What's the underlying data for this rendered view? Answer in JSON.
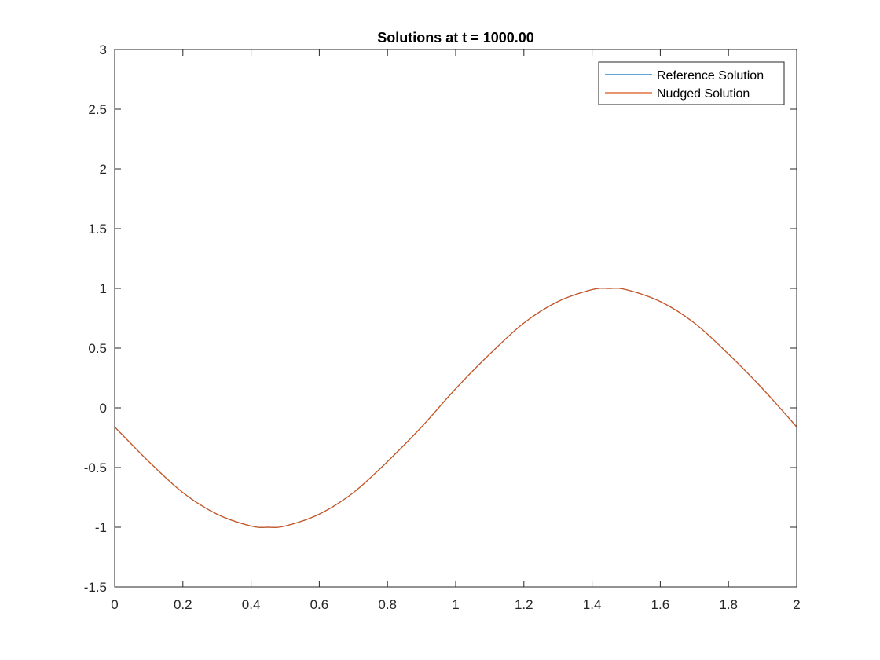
{
  "chart_data": {
    "type": "line",
    "title": "Solutions at t = 1000.00",
    "xlabel": "",
    "ylabel": "",
    "xlim": [
      0,
      2
    ],
    "ylim": [
      -1.5,
      3
    ],
    "xticks": [
      0,
      0.2,
      0.4,
      0.6,
      0.8,
      1,
      1.2,
      1.4,
      1.6,
      1.8,
      2
    ],
    "xtick_labels": [
      "0",
      "0.2",
      "0.4",
      "0.6",
      "0.8",
      "1",
      "1.2",
      "1.4",
      "1.6",
      "1.8",
      "2"
    ],
    "yticks": [
      -1.5,
      -1,
      -0.5,
      0,
      0.5,
      1,
      1.5,
      2,
      2.5,
      3
    ],
    "ytick_labels": [
      "-1.5",
      "-1",
      "-0.5",
      "0",
      "0.5",
      "1",
      "1.5",
      "2",
      "2.5",
      "3"
    ],
    "grid": false,
    "legend_position": "top-right",
    "series": [
      {
        "name": "Reference Solution",
        "color": "#0072BD",
        "x": [
          0,
          0.1,
          0.2,
          0.3,
          0.4,
          0.45,
          0.5,
          0.6,
          0.7,
          0.8,
          0.9,
          1.0,
          1.1,
          1.2,
          1.3,
          1.4,
          1.45,
          1.5,
          1.6,
          1.7,
          1.8,
          1.9,
          2.0
        ],
        "y": [
          -0.16,
          -0.45,
          -0.71,
          -0.89,
          -0.99,
          -1.0,
          -0.99,
          -0.89,
          -0.71,
          -0.45,
          -0.16,
          0.16,
          0.45,
          0.71,
          0.89,
          0.99,
          1.0,
          0.99,
          0.89,
          0.71,
          0.45,
          0.16,
          -0.16
        ]
      },
      {
        "name": "Nudged Solution",
        "color": "#D95319",
        "x": [
          0,
          0.1,
          0.2,
          0.3,
          0.4,
          0.45,
          0.5,
          0.6,
          0.7,
          0.8,
          0.9,
          1.0,
          1.1,
          1.2,
          1.3,
          1.4,
          1.45,
          1.5,
          1.6,
          1.7,
          1.8,
          1.9,
          2.0
        ],
        "y": [
          -0.16,
          -0.45,
          -0.71,
          -0.89,
          -0.99,
          -1.0,
          -0.99,
          -0.89,
          -0.71,
          -0.45,
          -0.16,
          0.16,
          0.45,
          0.71,
          0.89,
          0.99,
          1.0,
          0.99,
          0.89,
          0.71,
          0.45,
          0.16,
          -0.16
        ]
      }
    ]
  }
}
